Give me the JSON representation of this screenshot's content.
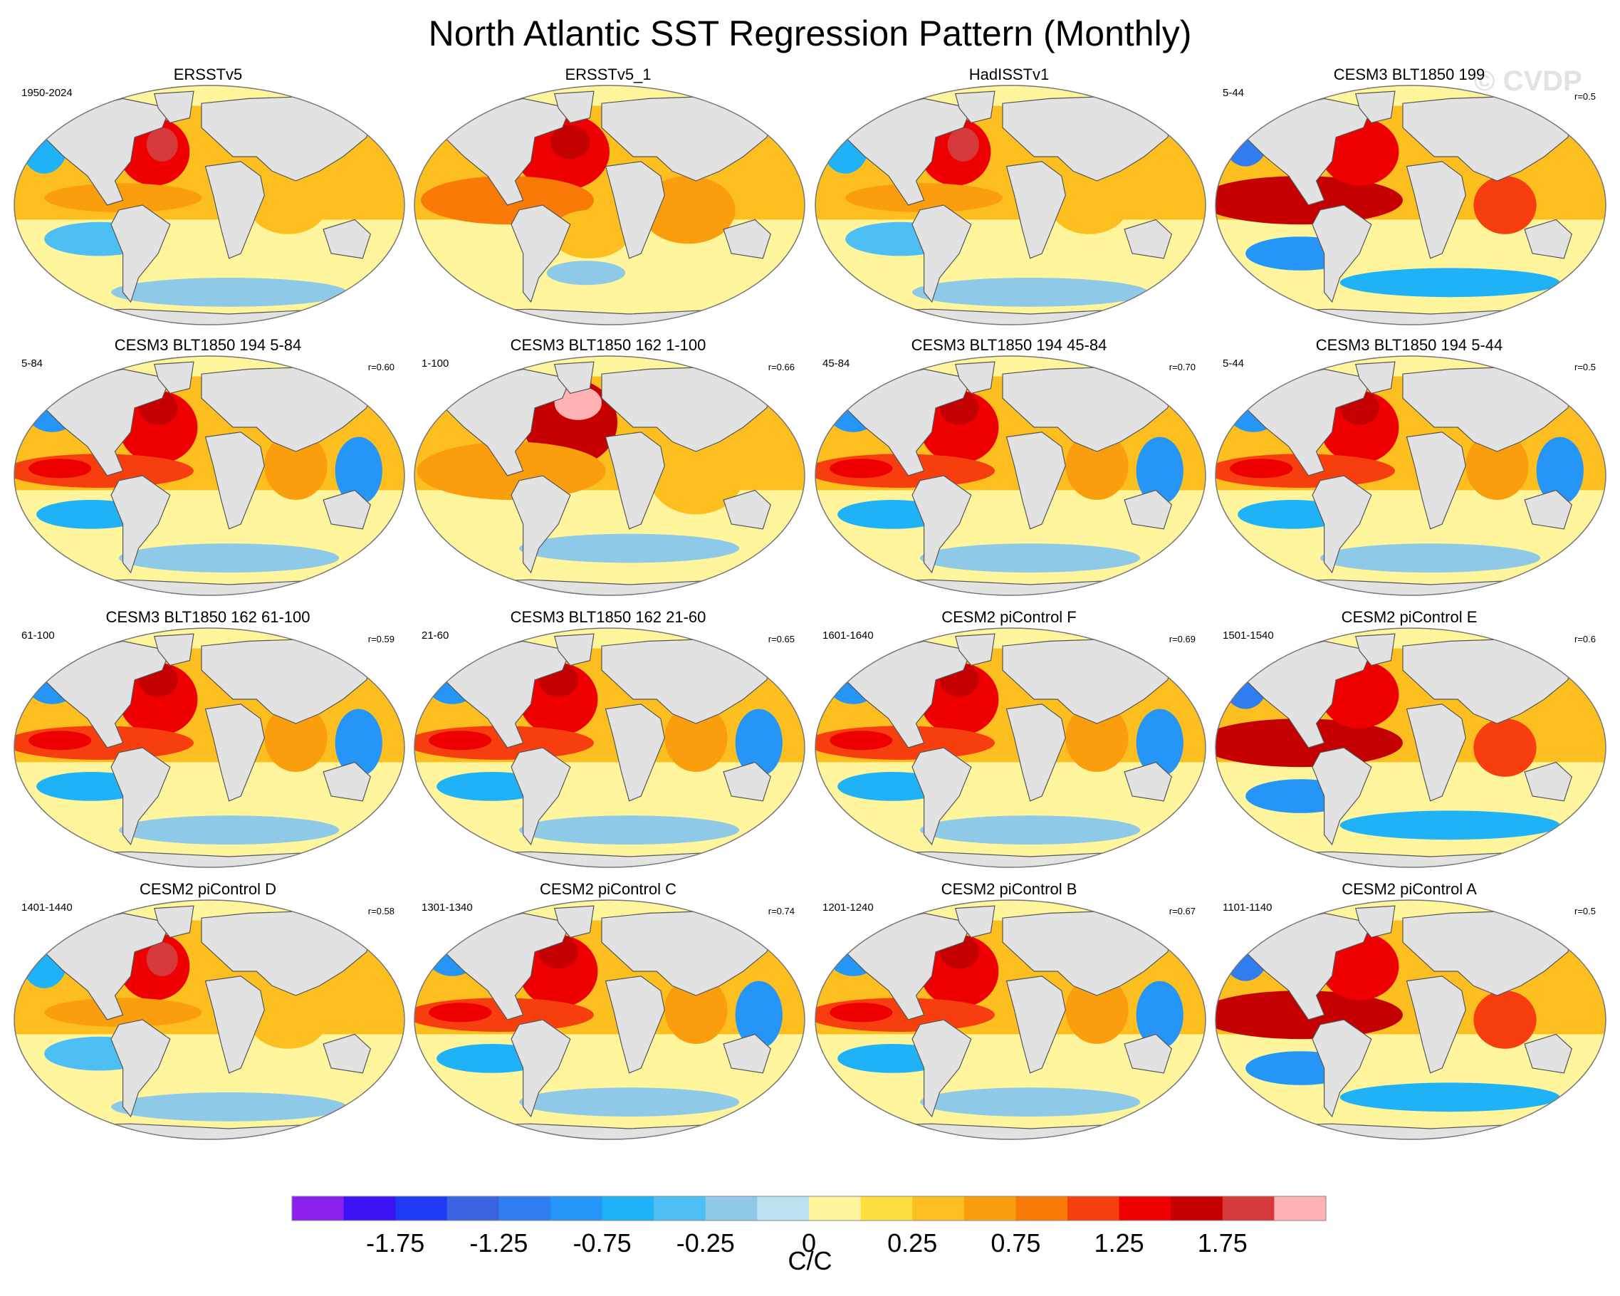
{
  "figure": {
    "title": "North Atlantic SST Regression Pattern (Monthly)",
    "watermark": "© CVDP",
    "units": "C/C"
  },
  "colors": {
    "land": "#e2e2e2",
    "ocean_top": "#fff59d",
    "coast": "#555555"
  },
  "chart_data": {
    "type": "heatmap",
    "title": "North Atlantic SST Regression Pattern (Monthly)",
    "colorbar": {
      "label": "C/C",
      "tick_labels": [
        "-1.75",
        "-1.25",
        "-0.75",
        "-0.25",
        "0",
        "0.25",
        "0.75",
        "1.25",
        "1.75"
      ],
      "colors": [
        "#8a1ff0",
        "#3b12f2",
        "#1f3af5",
        "#3963e0",
        "#2f7df0",
        "#2596f7",
        "#1fb2f7",
        "#4dbff5",
        "#8ecae8",
        "#bde2f2",
        "#fff59d",
        "#fde03d",
        "#fcbf1f",
        "#fb9e0d",
        "#fa7a08",
        "#f73e0e",
        "#ef0000",
        "#c50000",
        "#d6393b",
        "#ffb1b4"
      ]
    },
    "panels": [
      {
        "title": "ERSSTv5",
        "years": "1950-2024",
        "corr": "",
        "style": "obs"
      },
      {
        "title": "ERSSTv5_1",
        "years": "",
        "corr": "",
        "style": "obs2"
      },
      {
        "title": "HadISSTv1",
        "years": "",
        "corr": "",
        "style": "obs"
      },
      {
        "title": "CESM3 BLT1850 199",
        "years": "5-44",
        "corr": "r=0.5",
        "style": "enso"
      },
      {
        "title": "CESM3 BLT1850 194 5-84",
        "years": "5-84",
        "corr": "r=0.60",
        "style": "model"
      },
      {
        "title": "CESM3 BLT1850 162 1-100",
        "years": "1-100",
        "corr": "r=0.66",
        "style": "warm"
      },
      {
        "title": "CESM3 BLT1850 194 45-84",
        "years": "45-84",
        "corr": "r=0.70",
        "style": "model"
      },
      {
        "title": "CESM3 BLT1850 194 5-44",
        "years": "5-44",
        "corr": "r=0.5",
        "style": "model"
      },
      {
        "title": "CESM3 BLT1850 162 61-100",
        "years": "61-100",
        "corr": "r=0.59",
        "style": "model"
      },
      {
        "title": "CESM3 BLT1850 162 21-60",
        "years": "21-60",
        "corr": "r=0.65",
        "style": "model"
      },
      {
        "title": "CESM2 piControl F",
        "years": "1601-1640",
        "corr": "r=0.69",
        "style": "model"
      },
      {
        "title": "CESM2 piControl E",
        "years": "1501-1540",
        "corr": "r=0.6",
        "style": "enso"
      },
      {
        "title": "CESM2 piControl D",
        "years": "1401-1440",
        "corr": "r=0.58",
        "style": "obs"
      },
      {
        "title": "CESM2 piControl C",
        "years": "1301-1340",
        "corr": "r=0.74",
        "style": "model"
      },
      {
        "title": "CESM2 piControl B",
        "years": "1201-1240",
        "corr": "r=0.67",
        "style": "model"
      },
      {
        "title": "CESM2 piControl A",
        "years": "1101-1140",
        "corr": "r=0.5",
        "style": "enso"
      }
    ]
  }
}
